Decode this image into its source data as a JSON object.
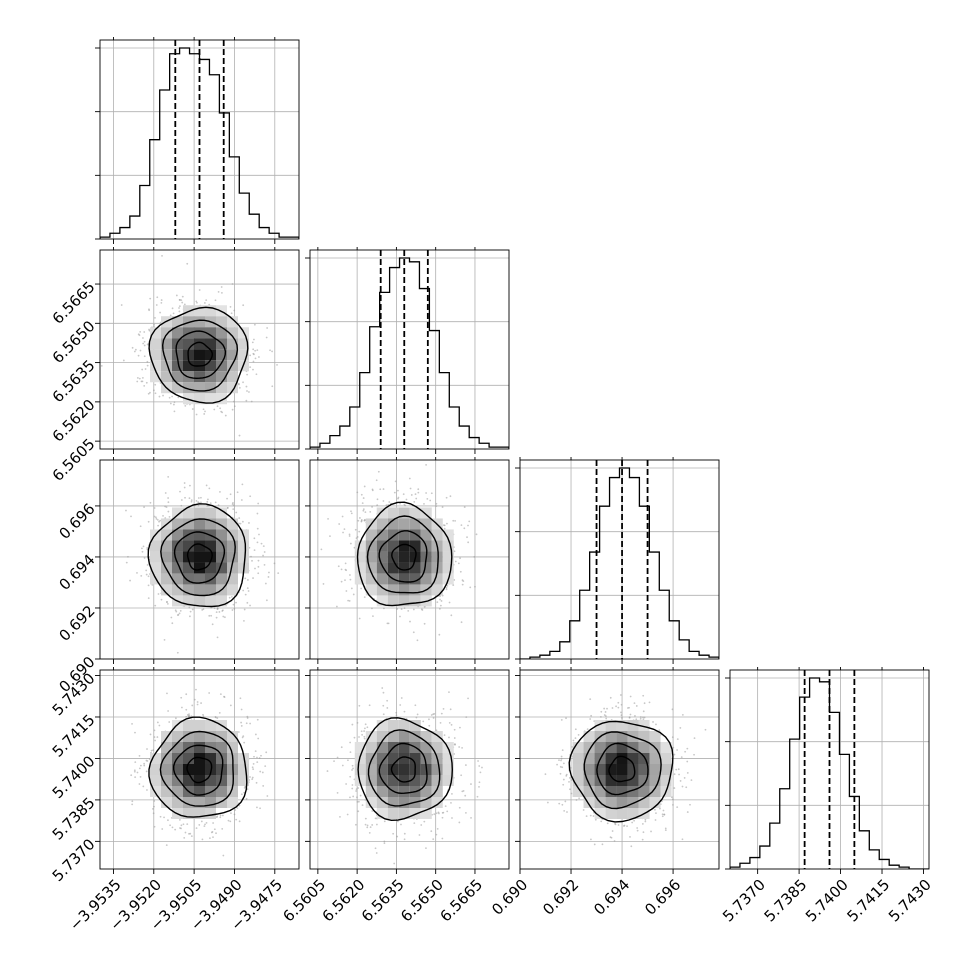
{
  "chart_data": {
    "type": "corner",
    "description_of_marks": "triangle corner plot: 1D step histograms on the diagonal with dashed lines at 16/50/84 percentiles; 2D density (grey cells, scatter points, 4 contour levels) below the diagonal",
    "grid": true,
    "parameters": [
      {
        "index": 0,
        "mean": -3.9503,
        "sigma": 0.0009,
        "range": [
          -3.954,
          -3.9466
        ],
        "ticks": [
          "−3.9535",
          "−3.9520",
          "−3.9505",
          "−3.9490",
          "−3.9475"
        ],
        "tick_values": [
          -3.9535,
          -3.952,
          -3.9505,
          -3.949,
          -3.9475
        ],
        "quantiles": [
          -3.9512,
          -3.9503,
          -3.9494
        ],
        "histogram": [
          1,
          3,
          6,
          12,
          28,
          52,
          78,
          97,
          100,
          97,
          94,
          86,
          66,
          43,
          24,
          13,
          6,
          3,
          1,
          1
        ]
      },
      {
        "index": 1,
        "mean": 6.5638,
        "sigma": 0.0009,
        "range": [
          6.5602,
          6.5678
        ],
        "ticks": [
          "6.5605",
          "6.5620",
          "6.5635",
          "6.5650",
          "6.5665"
        ],
        "tick_values": [
          6.5605,
          6.562,
          6.5635,
          6.565,
          6.5665
        ],
        "quantiles": [
          6.5629,
          6.5638,
          6.5647
        ],
        "histogram": [
          1,
          3,
          7,
          12,
          22,
          40,
          64,
          82,
          95,
          100,
          98,
          84,
          62,
          40,
          22,
          12,
          6,
          3,
          1,
          1
        ]
      },
      {
        "index": 2,
        "mean": 0.694,
        "sigma": 0.001,
        "range": [
          0.69,
          0.6978
        ],
        "ticks": [
          "0.690",
          "0.692",
          "0.694",
          "0.696"
        ],
        "tick_values": [
          0.69,
          0.692,
          0.694,
          0.696
        ],
        "quantiles": [
          0.693,
          0.694,
          0.695
        ],
        "histogram": [
          0,
          1,
          2,
          4,
          9,
          20,
          36,
          56,
          80,
          95,
          100,
          95,
          80,
          56,
          36,
          20,
          10,
          4,
          2,
          1
        ]
      },
      {
        "index": 3,
        "mean": 5.7396,
        "sigma": 0.0009,
        "range": [
          5.736,
          5.7432
        ],
        "ticks": [
          "5.7370",
          "5.7385",
          "5.7400",
          "5.7415",
          "5.7430"
        ],
        "tick_values": [
          5.737,
          5.7385,
          5.74,
          5.7415,
          5.743
        ],
        "quantiles": [
          5.7387,
          5.7396,
          5.7405
        ],
        "histogram": [
          1,
          3,
          6,
          12,
          24,
          42,
          68,
          90,
          100,
          98,
          82,
          60,
          38,
          20,
          10,
          5,
          2,
          1,
          0,
          0
        ]
      }
    ],
    "contour_levels_sigma": [
      0.5,
      1.0,
      1.5,
      2.0
    ]
  },
  "colors": {
    "line": "#000000",
    "grid": "#b0b0b0",
    "scatter": "#9a9a9a",
    "background": "#ffffff"
  }
}
